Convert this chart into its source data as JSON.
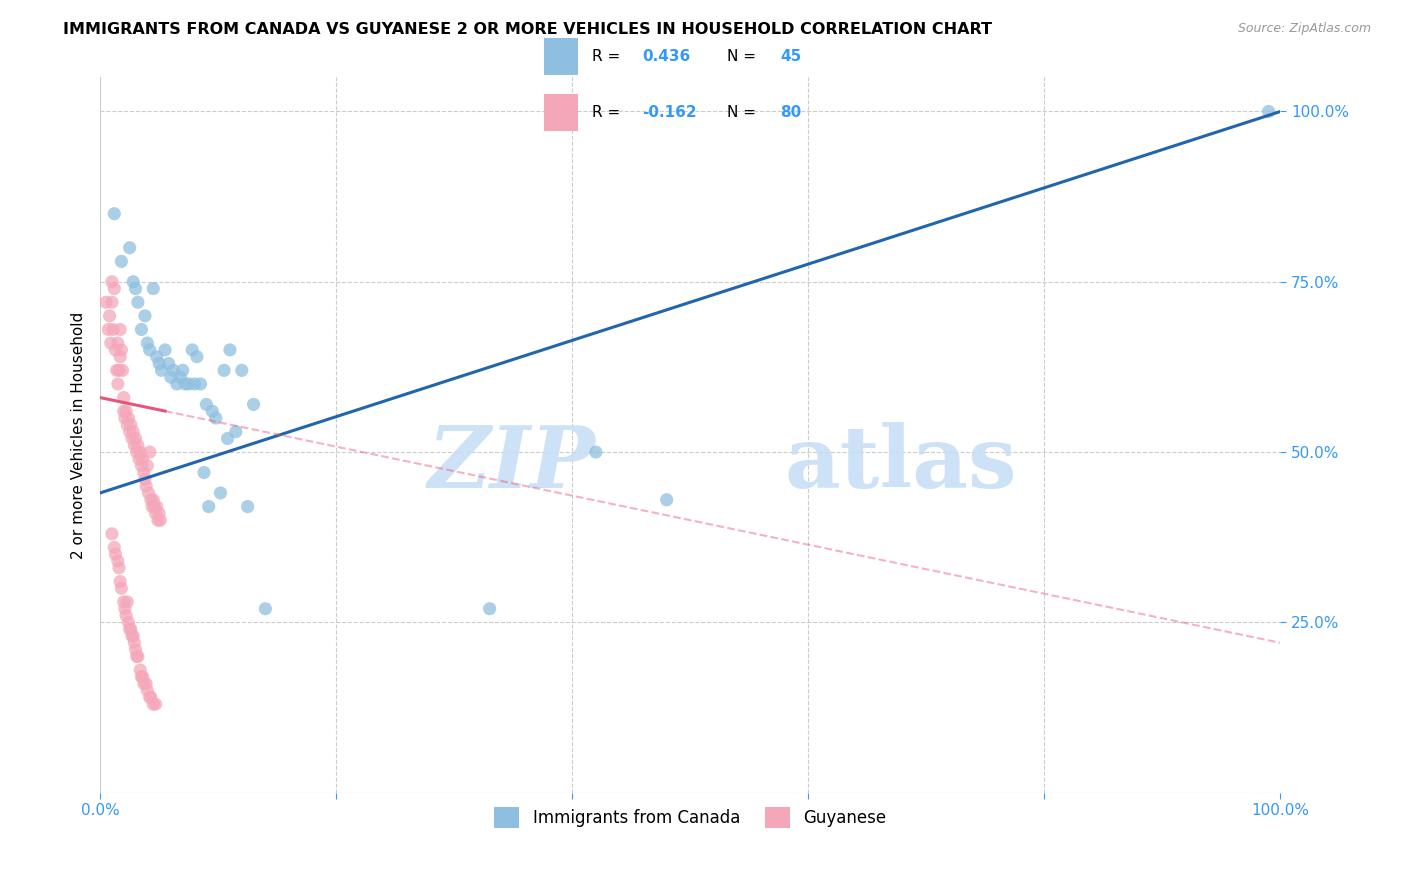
{
  "title": "IMMIGRANTS FROM CANADA VS GUYANESE 2 OR MORE VEHICLES IN HOUSEHOLD CORRELATION CHART",
  "source": "Source: ZipAtlas.com",
  "ylabel": "2 or more Vehicles in Household",
  "legend_label1": "Immigrants from Canada",
  "legend_label2": "Guyanese",
  "r1": 0.436,
  "n1": 45,
  "r2": -0.162,
  "n2": 80,
  "color_blue": "#8fbfe0",
  "color_pink": "#f4a7b9",
  "color_trendline_blue": "#2166ac",
  "color_trendline_pink": "#e8557a",
  "watermark_zip": "ZIP",
  "watermark_atlas": "atlas",
  "xlim": [
    0,
    100
  ],
  "ylim": [
    0,
    105
  ],
  "ytick_values": [
    25,
    50,
    75,
    100
  ],
  "ytick_labels": [
    "25.0%",
    "50.0%",
    "75.0%",
    "100.0%"
  ],
  "xtick_show": [
    0,
    100
  ],
  "xtick_labels": [
    "0.0%",
    "100.0%"
  ],
  "blue_points_x": [
    1.2,
    1.8,
    2.5,
    2.8,
    3.0,
    3.2,
    3.5,
    3.8,
    4.0,
    4.2,
    4.5,
    4.8,
    5.0,
    5.2,
    5.5,
    5.8,
    6.0,
    6.2,
    6.5,
    6.8,
    7.0,
    7.2,
    7.5,
    7.8,
    8.0,
    8.2,
    8.5,
    8.8,
    9.0,
    9.2,
    9.5,
    9.8,
    10.2,
    10.5,
    10.8,
    11.0,
    11.5,
    12.0,
    12.5,
    13.0,
    14.0,
    33.0,
    42.0,
    48.0,
    99.0
  ],
  "blue_points_y": [
    85,
    78,
    80,
    75,
    74,
    72,
    68,
    70,
    66,
    65,
    74,
    64,
    63,
    62,
    65,
    63,
    61,
    62,
    60,
    61,
    62,
    60,
    60,
    65,
    60,
    64,
    60,
    47,
    57,
    42,
    56,
    55,
    44,
    62,
    52,
    65,
    53,
    62,
    42,
    57,
    27,
    27,
    50,
    43,
    100
  ],
  "pink_points_x": [
    0.5,
    0.7,
    0.8,
    0.9,
    1.0,
    1.0,
    1.1,
    1.2,
    1.3,
    1.4,
    1.5,
    1.5,
    1.6,
    1.7,
    1.7,
    1.8,
    1.9,
    2.0,
    2.0,
    2.1,
    2.2,
    2.3,
    2.4,
    2.5,
    2.6,
    2.7,
    2.8,
    2.9,
    3.0,
    3.1,
    3.2,
    3.3,
    3.4,
    3.5,
    3.6,
    3.7,
    3.8,
    3.9,
    4.0,
    4.1,
    4.2,
    4.3,
    4.4,
    4.5,
    4.6,
    4.7,
    4.8,
    4.9,
    5.0,
    5.1,
    1.0,
    1.2,
    1.3,
    1.5,
    1.6,
    1.7,
    1.8,
    2.0,
    2.1,
    2.2,
    2.3,
    2.4,
    2.5,
    2.6,
    2.7,
    2.8,
    2.9,
    3.0,
    3.1,
    3.2,
    3.4,
    3.5,
    3.6,
    3.7,
    3.9,
    4.0,
    4.2,
    4.3,
    4.5,
    4.7
  ],
  "pink_points_y": [
    72,
    68,
    70,
    66,
    75,
    72,
    68,
    74,
    65,
    62,
    66,
    60,
    62,
    68,
    64,
    65,
    62,
    56,
    58,
    55,
    56,
    54,
    55,
    53,
    54,
    52,
    53,
    51,
    52,
    50,
    51,
    49,
    50,
    48,
    49,
    47,
    46,
    45,
    48,
    44,
    50,
    43,
    42,
    43,
    42,
    41,
    42,
    40,
    41,
    40,
    38,
    36,
    35,
    34,
    33,
    31,
    30,
    28,
    27,
    26,
    28,
    25,
    24,
    24,
    23,
    23,
    22,
    21,
    20,
    20,
    18,
    17,
    17,
    16,
    16,
    15,
    14,
    14,
    13,
    13
  ],
  "blue_trend_x0": 0,
  "blue_trend_y0": 44,
  "blue_trend_x1": 100,
  "blue_trend_y1": 100,
  "pink_trend_x0": 0,
  "pink_trend_y0": 58,
  "pink_trend_x1": 100,
  "pink_trend_y1": 22,
  "pink_solid_end_x": 5.5
}
